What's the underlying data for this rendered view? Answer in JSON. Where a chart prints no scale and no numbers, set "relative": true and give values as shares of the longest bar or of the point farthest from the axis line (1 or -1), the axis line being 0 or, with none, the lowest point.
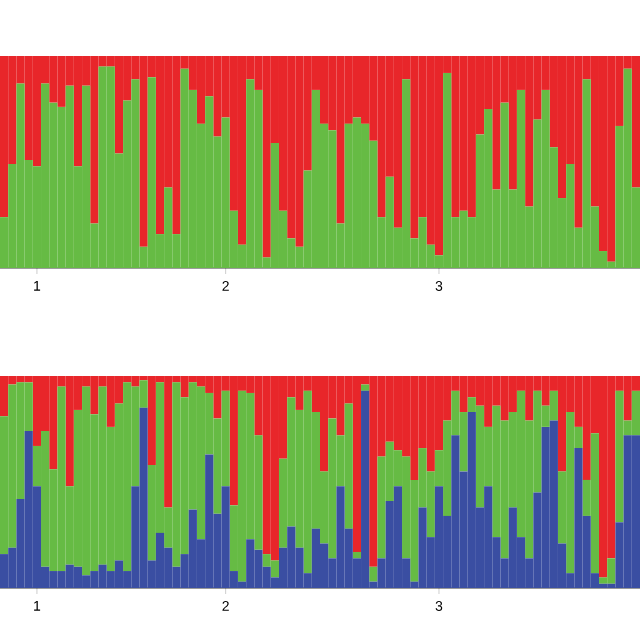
{
  "chart_data": [
    {
      "type": "bar",
      "stacked": true,
      "relative": true,
      "tick_labels": "x",
      "categories": [
        null,
        null,
        null,
        null,
        "1",
        null,
        null,
        null,
        null,
        null,
        null,
        null,
        null,
        null,
        null,
        null,
        null,
        null,
        null,
        null,
        null,
        null,
        null,
        null,
        null,
        null,
        null,
        "2",
        null,
        null,
        null,
        null,
        null,
        null,
        null,
        null,
        null,
        null,
        null,
        null,
        null,
        null,
        null,
        null,
        null,
        null,
        null,
        null,
        null,
        null,
        null,
        null,
        null,
        "3",
        null,
        null,
        null,
        null,
        null,
        null,
        null,
        null,
        null,
        null,
        null,
        null,
        null,
        null,
        null,
        null,
        null,
        null,
        null,
        null,
        null,
        null,
        null,
        null
      ],
      "series": [
        {
          "color": "#66bb44",
          "values": [
            0.24,
            0.49,
            0.87,
            0.51,
            0.48,
            0.87,
            0.78,
            0.76,
            0.86,
            0.48,
            0.86,
            0.21,
            0.95,
            0.95,
            0.54,
            0.79,
            0.89,
            0.1,
            0.9,
            0.16,
            0.38,
            0.16,
            0.94,
            0.84,
            0.68,
            0.81,
            0.62,
            0.71,
            0.27,
            0.11,
            0.89,
            0.84,
            0.05,
            0.59,
            0.27,
            0.14,
            0.1,
            0.46,
            0.84,
            0.68,
            0.65,
            0.21,
            0.68,
            0.71,
            0.68,
            0.6,
            0.24,
            0.43,
            0.19,
            0.89,
            0.14,
            0.24,
            0.11,
            0.06,
            0.92,
            0.24,
            0.27,
            0.24,
            0.63,
            0.75,
            0.37,
            0.78,
            0.37,
            0.84,
            0.29,
            0.7,
            0.84,
            0.57,
            0.33,
            0.49,
            0.19,
            0.89,
            0.29,
            0.08,
            0.03,
            0.67,
            0.94,
            0.38
          ]
        },
        {
          "color": "#e8262a",
          "values": [
            0.76,
            0.51,
            0.13,
            0.49,
            0.52,
            0.13,
            0.22,
            0.24,
            0.14,
            0.52,
            0.14,
            0.79,
            0.05,
            0.05,
            0.46,
            0.21,
            0.11,
            0.9,
            0.1,
            0.84,
            0.62,
            0.84,
            0.06,
            0.16,
            0.32,
            0.19,
            0.38,
            0.29,
            0.73,
            0.89,
            0.11,
            0.16,
            0.95,
            0.41,
            0.73,
            0.86,
            0.9,
            0.54,
            0.16,
            0.32,
            0.35,
            0.79,
            0.32,
            0.29,
            0.32,
            0.4,
            0.76,
            0.57,
            0.81,
            0.11,
            0.86,
            0.76,
            0.89,
            0.94,
            0.08,
            0.76,
            0.73,
            0.76,
            0.37,
            0.25,
            0.63,
            0.22,
            0.63,
            0.16,
            0.71,
            0.3,
            0.16,
            0.43,
            0.67,
            0.51,
            0.81,
            0.11,
            0.71,
            0.92,
            0.97,
            0.33,
            0.06,
            0.62
          ]
        }
      ]
    },
    {
      "type": "bar",
      "stacked": true,
      "relative": true,
      "tick_labels": "x",
      "categories": [
        null,
        null,
        null,
        null,
        "1",
        null,
        null,
        null,
        null,
        null,
        null,
        null,
        null,
        null,
        null,
        null,
        null,
        null,
        null,
        null,
        null,
        null,
        null,
        null,
        null,
        null,
        null,
        "2",
        null,
        null,
        null,
        null,
        null,
        null,
        null,
        null,
        null,
        null,
        null,
        null,
        null,
        null,
        null,
        null,
        null,
        null,
        null,
        null,
        null,
        null,
        null,
        null,
        null,
        "3",
        null,
        null,
        null,
        null,
        null,
        null,
        null,
        null,
        null,
        null,
        null,
        null,
        null,
        null,
        null,
        null,
        null,
        null,
        null,
        null,
        null,
        null,
        null,
        null
      ],
      "series": [
        {
          "color": "#3a4ea2",
          "values": [
            0.16,
            0.19,
            0.42,
            0.74,
            0.48,
            0.1,
            0.08,
            0.08,
            0.11,
            0.1,
            0.06,
            0.08,
            0.11,
            0.08,
            0.13,
            0.08,
            0.48,
            0.85,
            0.13,
            0.26,
            0.19,
            0.1,
            0.16,
            0.37,
            0.23,
            0.63,
            0.35,
            0.48,
            0.08,
            0.03,
            0.23,
            0.18,
            0.1,
            0.05,
            0.19,
            0.29,
            0.19,
            0.07,
            0.28,
            0.21,
            0.14,
            0.48,
            0.28,
            0.14,
            0.93,
            0.03,
            0.14,
            0.41,
            0.48,
            0.14,
            0.03,
            0.38,
            0.24,
            0.48,
            0.34,
            0.72,
            0.55,
            0.83,
            0.38,
            0.48,
            0.24,
            0.14,
            0.38,
            0.24,
            0.14,
            0.45,
            0.76,
            0.79,
            0.21,
            0.07,
            0.66,
            0.34,
            0.07,
            0.02,
            0.02,
            0.31,
            0.72,
            0.72
          ]
        },
        {
          "color": "#66bb44",
          "values": [
            0.65,
            0.77,
            0.55,
            0.23,
            0.19,
            0.64,
            0.48,
            0.87,
            0.37,
            0.74,
            0.89,
            0.74,
            0.84,
            0.68,
            0.74,
            0.89,
            0.47,
            0.13,
            0.45,
            0.71,
            0.19,
            0.87,
            0.74,
            0.6,
            0.72,
            0.29,
            0.45,
            0.45,
            0.31,
            0.9,
            0.69,
            0.54,
            0.06,
            0.08,
            0.42,
            0.61,
            0.65,
            0.86,
            0.55,
            0.34,
            0.66,
            0.24,
            0.59,
            0.03,
            0.03,
            0.07,
            0.48,
            0.28,
            0.17,
            0.48,
            0.48,
            0.28,
            0.31,
            0.17,
            0.45,
            0.21,
            0.28,
            0.07,
            0.48,
            0.28,
            0.62,
            0.65,
            0.45,
            0.69,
            0.65,
            0.48,
            0.1,
            0.14,
            0.34,
            0.76,
            0.1,
            0.17,
            0.66,
            0.03,
            0.12,
            0.62,
            0.07,
            0.21
          ]
        },
        {
          "color": "#e8262a",
          "values": [
            0.19,
            0.04,
            0.03,
            0.03,
            0.33,
            0.26,
            0.44,
            0.05,
            0.52,
            0.16,
            0.05,
            0.18,
            0.05,
            0.24,
            0.13,
            0.03,
            0.05,
            0.02,
            0.42,
            0.03,
            0.62,
            0.03,
            0.1,
            0.03,
            0.05,
            0.08,
            0.2,
            0.07,
            0.61,
            0.07,
            0.08,
            0.28,
            0.84,
            0.87,
            0.39,
            0.1,
            0.16,
            0.07,
            0.17,
            0.45,
            0.2,
            0.28,
            0.13,
            0.83,
            0.04,
            0.9,
            0.38,
            0.31,
            0.35,
            0.38,
            0.49,
            0.34,
            0.45,
            0.35,
            0.21,
            0.07,
            0.17,
            0.1,
            0.14,
            0.24,
            0.14,
            0.21,
            0.17,
            0.07,
            0.21,
            0.07,
            0.14,
            0.07,
            0.45,
            0.17,
            0.24,
            0.49,
            0.27,
            0.95,
            0.86,
            0.07,
            0.21,
            0.07
          ]
        }
      ]
    }
  ]
}
